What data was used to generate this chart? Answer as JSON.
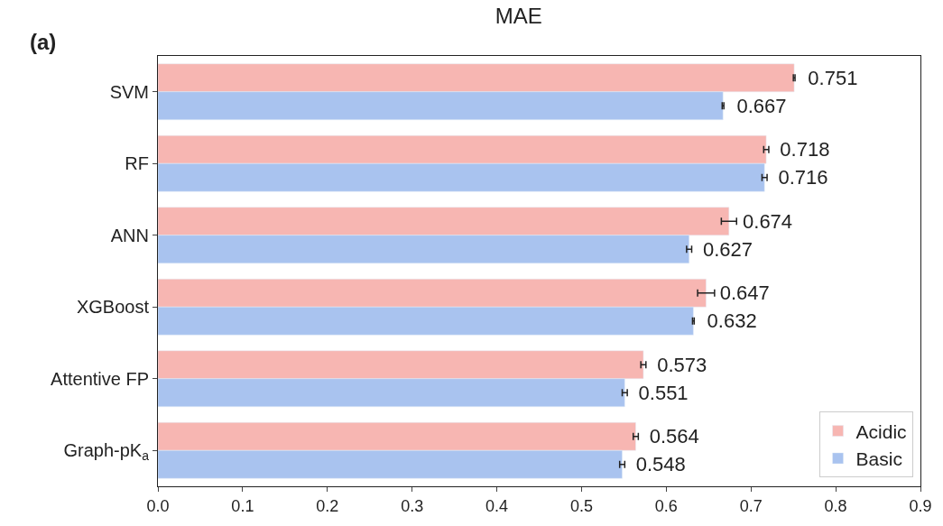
{
  "chart_data": {
    "type": "bar",
    "orientation": "horizontal",
    "title": "MAE",
    "annotations": [
      "(a)"
    ],
    "categories": [
      "SVM",
      "RF",
      "ANN",
      "XGBoost",
      "Attentive FP",
      "Graph-pK$_{a}$"
    ],
    "series": [
      {
        "name": "Acidic",
        "color": "#f7b6b2",
        "values": [
          0.751,
          0.718,
          0.674,
          0.647,
          0.573,
          0.564
        ],
        "errors": [
          0.001,
          0.003,
          0.009,
          0.01,
          0.003,
          0.003
        ]
      },
      {
        "name": "Basic",
        "color": "#a9c3ef",
        "values": [
          0.667,
          0.716,
          0.627,
          0.632,
          0.551,
          0.548
        ],
        "errors": [
          0.001,
          0.003,
          0.003,
          0.001,
          0.003,
          0.003
        ]
      }
    ],
    "xlim": [
      0,
      0.9
    ],
    "xticks": [
      {
        "value": 0,
        "label": "0.0"
      },
      {
        "value": 0.1,
        "label": "0.1"
      },
      {
        "value": 0.2,
        "label": "0.2"
      },
      {
        "value": 0.3,
        "label": "0.3"
      },
      {
        "value": 0.4,
        "label": "0.4"
      },
      {
        "value": 0.5,
        "label": "0.5"
      },
      {
        "value": 0.6,
        "label": "0.6"
      },
      {
        "value": 0.7,
        "label": "0.7"
      },
      {
        "value": 0.8,
        "label": "0.8"
      },
      {
        "value": 0.9,
        "label": "0.9"
      }
    ],
    "data_labels": true,
    "legend": "bottom right"
  }
}
